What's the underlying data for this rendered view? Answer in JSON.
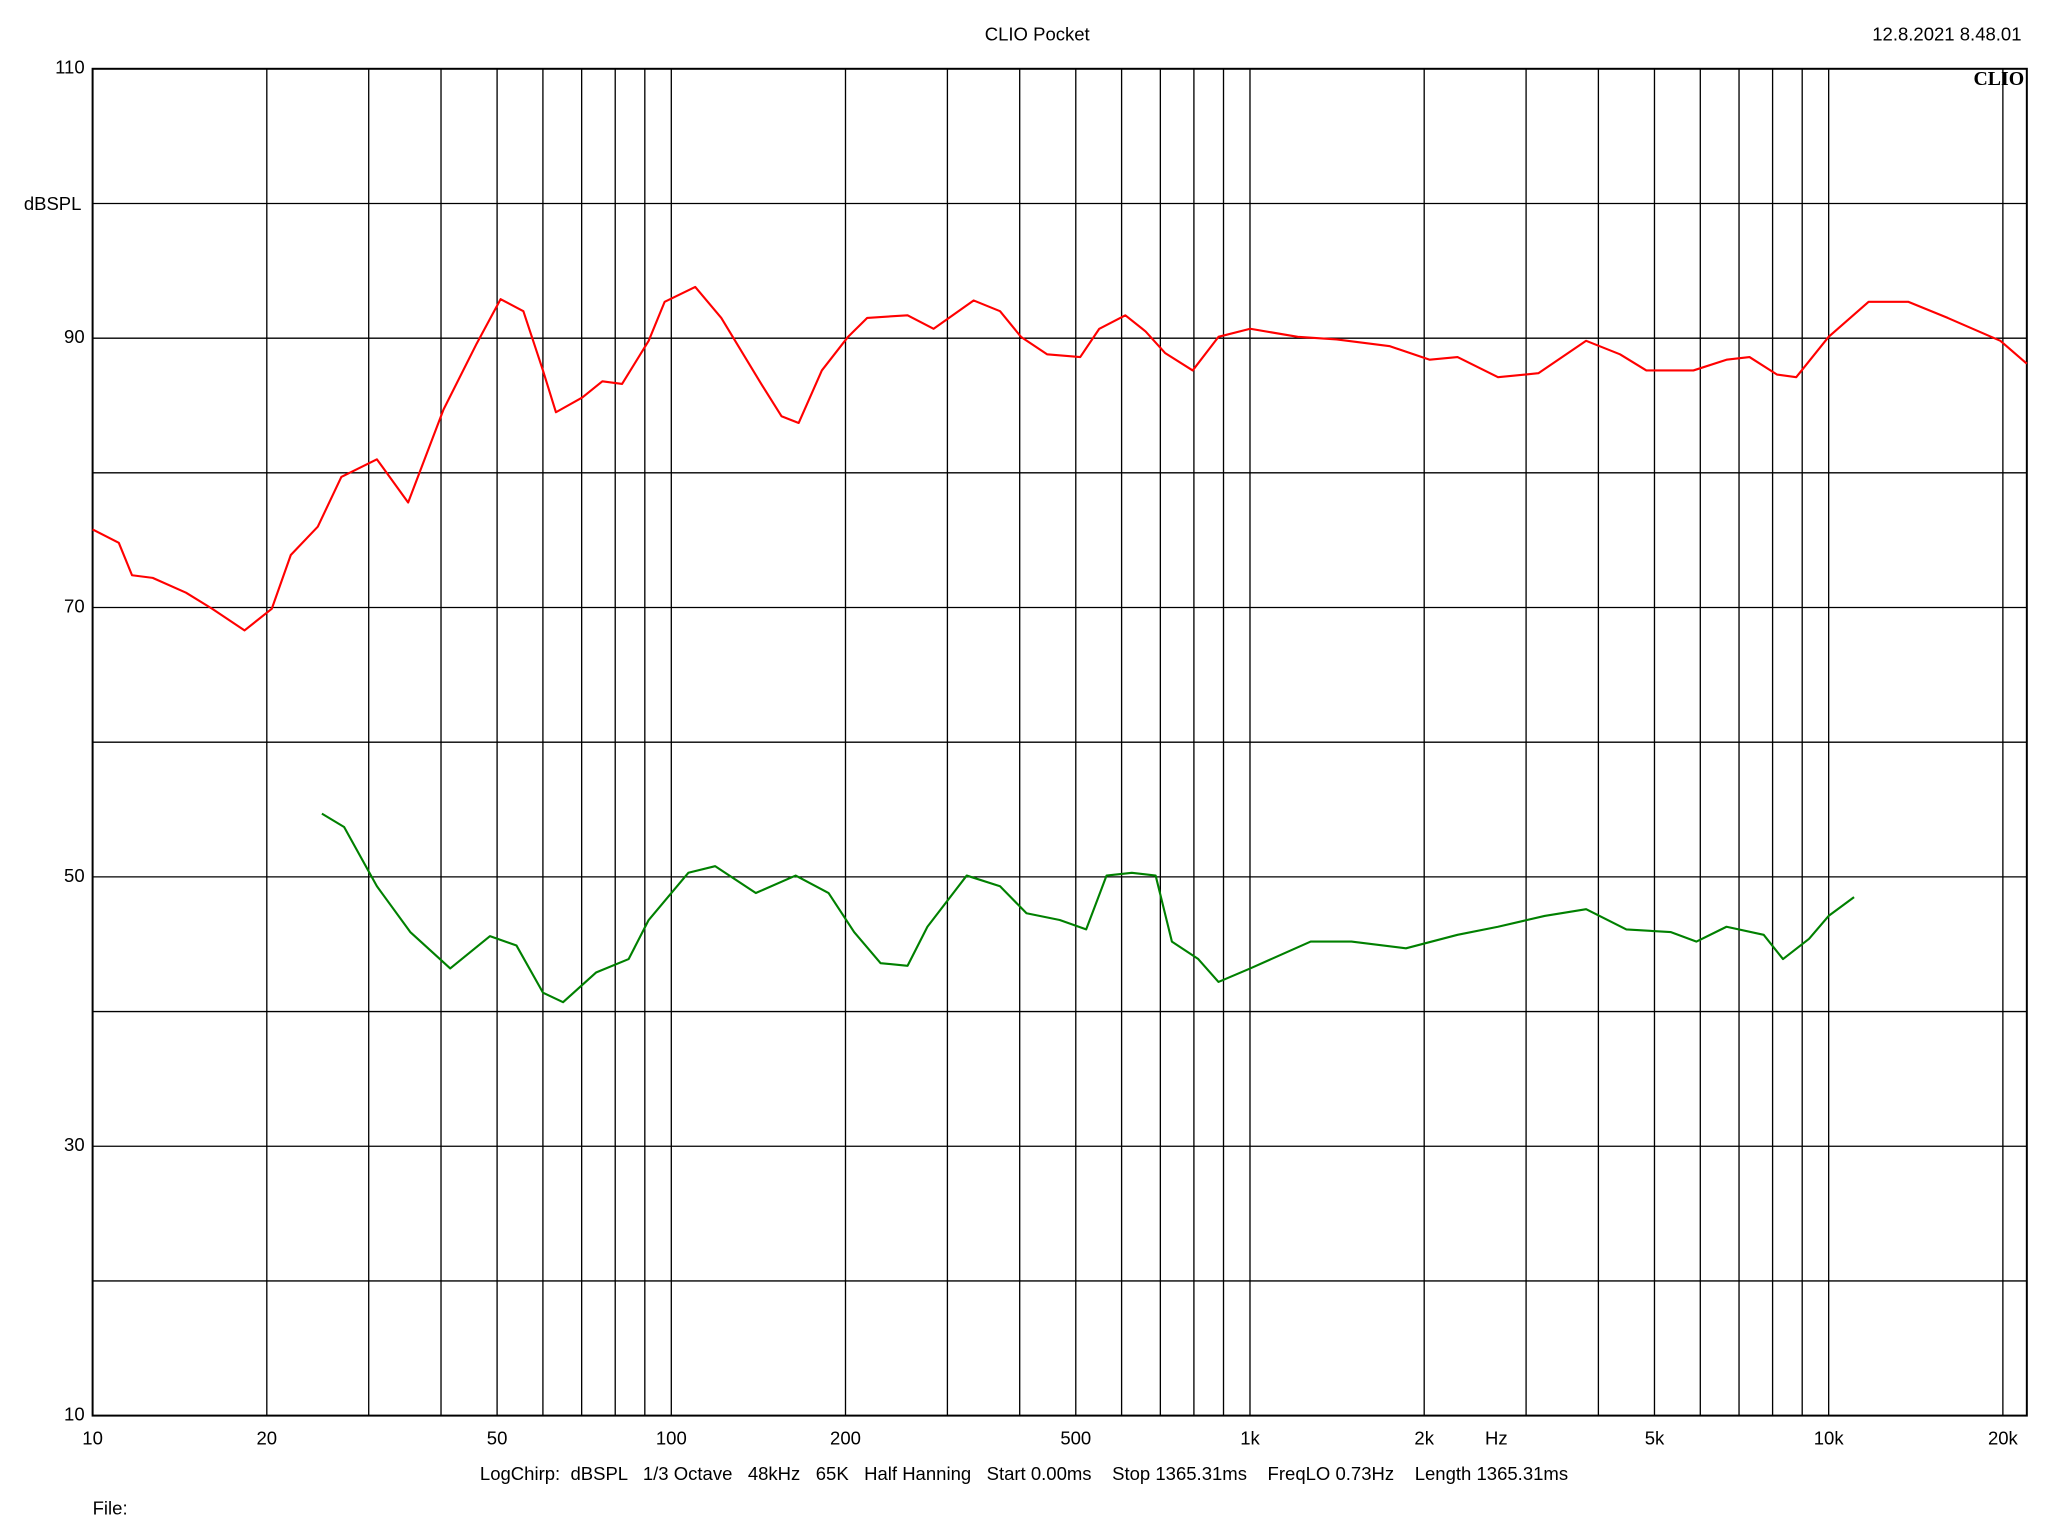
{
  "chart_data": {
    "type": "line",
    "title": "CLIO Pocket",
    "timestamp": "12.8.2021 8.48.01",
    "logo": "CLIO",
    "y_label": "dBSPL",
    "x_label": "Hz",
    "footer": "LogChirp:  dBSPL   1/3 Octave   48kHz   65K   Half Hanning   Start 0.00ms    Stop 1365.31ms    FreqLO 0.73Hz    Length 1365.31ms",
    "file_label": "File:",
    "x_scale": "log",
    "grid": true,
    "xlim": [
      10,
      22000
    ],
    "ylim": [
      10,
      110
    ],
    "xticks": [
      10,
      20,
      50,
      100,
      200,
      500,
      {
        "value": 1000,
        "label": "1k"
      },
      {
        "value": 2000,
        "label": "2k"
      },
      {
        "value": 5000,
        "label": "5k"
      },
      {
        "value": 10000,
        "label": "10k"
      },
      {
        "value": 20000,
        "label": "20k"
      }
    ],
    "minor_xticks": [
      30,
      40,
      60,
      70,
      80,
      90,
      300,
      400,
      600,
      700,
      800,
      900,
      3000,
      4000,
      6000,
      7000,
      8000,
      9000
    ],
    "yticks": [
      10,
      30,
      50,
      70,
      90,
      110
    ],
    "minor_yticks": [
      20,
      40,
      60,
      80,
      100
    ],
    "series": [
      {
        "color": "#ff0000",
        "x": [
          10,
          11.1,
          11.7,
          12.7,
          14.5,
          16.1,
          18.3,
          20.4,
          22.0,
          24.5,
          26.9,
          31.0,
          35.1,
          40.4,
          46.1,
          50.7,
          55.5,
          60.0,
          63.2,
          70.2,
          76.0,
          82.2,
          91.4,
          97.4,
          110,
          122,
          143,
          155,
          166,
          182,
          202,
          218,
          256,
          284,
          333,
          370,
          402,
          446,
          509,
          549,
          609,
          660,
          713,
          796,
          882,
          1001,
          1209,
          1412,
          1745,
          2045,
          2284,
          2683,
          3150,
          3810,
          4360,
          4840,
          5840,
          6660,
          7300,
          8140,
          8790,
          10000,
          11720,
          13720,
          16060,
          19800,
          22000
        ],
        "values": [
          75.8,
          74.8,
          72.4,
          72.2,
          71.1,
          69.9,
          68.3,
          69.9,
          73.9,
          76.0,
          79.7,
          81.0,
          77.8,
          84.7,
          89.6,
          92.9,
          92.0,
          87.6,
          84.5,
          85.6,
          86.8,
          86.6,
          89.8,
          92.7,
          93.8,
          91.5,
          86.6,
          84.2,
          83.7,
          87.6,
          90.1,
          91.5,
          91.7,
          90.7,
          92.8,
          92.0,
          90.1,
          88.8,
          88.6,
          90.7,
          91.7,
          90.5,
          88.9,
          87.6,
          90.1,
          90.7,
          90.1,
          89.9,
          89.4,
          88.4,
          88.6,
          87.1,
          87.4,
          89.8,
          88.8,
          87.6,
          87.6,
          88.4,
          88.6,
          87.3,
          87.1,
          90.1,
          92.7,
          92.7,
          91.5,
          89.8,
          88.1
        ]
      },
      {
        "color": "#008000",
        "x": [
          24.9,
          27.2,
          31.0,
          35.4,
          41.5,
          48.6,
          54.0,
          60.0,
          65.0,
          74.1,
          84.4,
          91.4,
          107,
          119,
          140,
          164,
          187,
          207,
          230,
          256,
          277,
          324,
          370,
          411,
          469,
          521,
          565,
          625,
          687,
          733,
          814,
          882,
          1001,
          1273,
          1497,
          1860,
          2284,
          2683,
          3230,
          3810,
          4470,
          5330,
          5910,
          6660,
          7720,
          8340,
          9250,
          10000,
          11060
        ],
        "values": [
          54.7,
          53.7,
          49.3,
          45.9,
          43.2,
          45.6,
          44.9,
          41.4,
          40.7,
          42.9,
          43.9,
          46.8,
          50.3,
          50.8,
          48.8,
          50.1,
          48.8,
          45.9,
          43.6,
          43.4,
          46.3,
          50.1,
          49.3,
          47.3,
          46.8,
          46.1,
          50.1,
          50.3,
          50.1,
          45.2,
          43.9,
          42.2,
          43.2,
          45.2,
          45.2,
          44.7,
          45.7,
          46.3,
          47.1,
          47.6,
          46.1,
          45.9,
          45.2,
          46.3,
          45.7,
          43.9,
          45.4,
          47.1,
          48.5
        ]
      }
    ]
  }
}
